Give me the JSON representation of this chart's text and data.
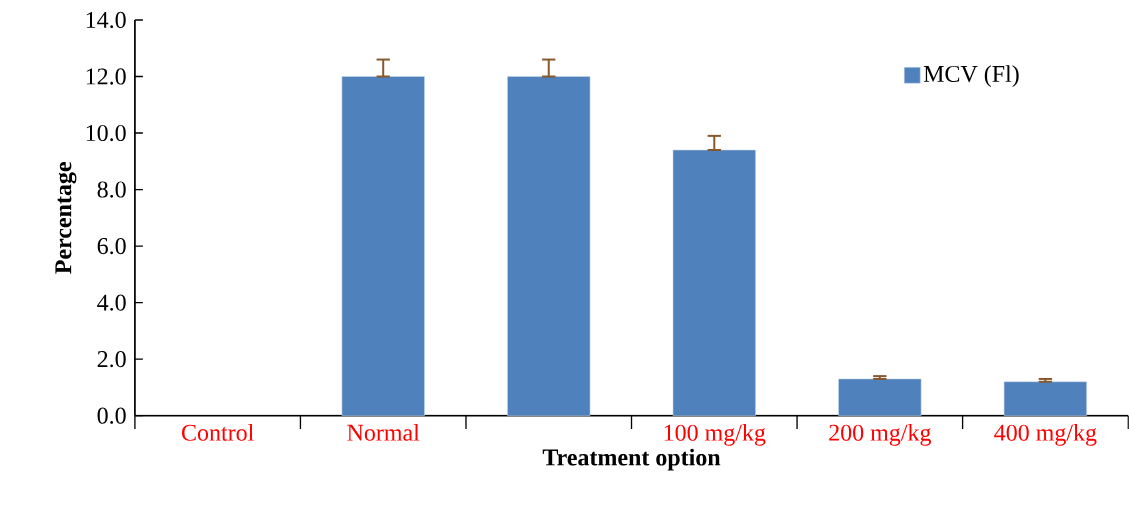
{
  "chart_data": {
    "type": "bar",
    "xlabel": "Treatment option",
    "ylabel": "Percentage",
    "categories": [
      "Control",
      "Normal",
      null,
      "100 mg/kg",
      "200 mg/kg",
      "400 mg/kg"
    ],
    "series": [
      {
        "name": "MCV (Fl)",
        "color": "#4f81bd",
        "values": [
          null,
          12.0,
          12.0,
          9.4,
          1.3,
          1.2
        ],
        "errors": [
          null,
          [
            12.0,
            12.6
          ],
          [
            12.0,
            12.6
          ],
          [
            9.4,
            9.9
          ],
          [
            1.3,
            1.4
          ],
          [
            1.2,
            1.3
          ]
        ]
      }
    ],
    "ylim": [
      0,
      14
    ],
    "yticks": [
      {
        "value": 0,
        "label": "0.0"
      },
      {
        "value": 2,
        "label": "2.0"
      },
      {
        "value": 4,
        "label": "4.0"
      },
      {
        "value": 6,
        "label": "6.0"
      },
      {
        "value": 8,
        "label": "8.0"
      },
      {
        "value": 10,
        "label": "10.0"
      },
      {
        "value": 12,
        "label": "12.0"
      },
      {
        "value": 14,
        "label": "14.0"
      }
    ],
    "grid": false,
    "legend": "top right"
  }
}
